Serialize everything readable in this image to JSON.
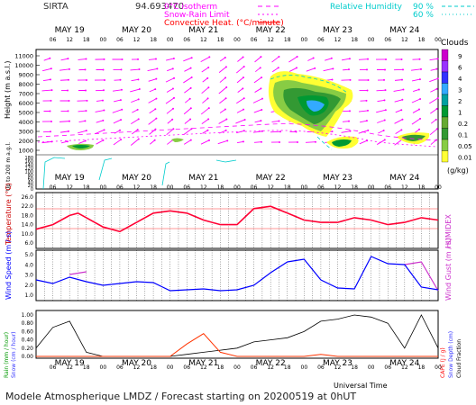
{
  "header": {
    "station": "SIRTA",
    "altitude": "94.693470",
    "legend": [
      {
        "label": "0°C isotherm",
        "color": "#ff00ff",
        "dash": "5,4"
      },
      {
        "label": "Snow-Rain Limit",
        "color": "#ff00ff",
        "dash": "2,3"
      },
      {
        "label": "Convective Heat. (°C/minute)",
        "color": "#ff0000",
        "dash": ""
      }
    ],
    "rh": {
      "label": "Relative Humidity",
      "items": [
        {
          "value": "90 %",
          "color": "#00cccc",
          "dash": "4,3"
        },
        {
          "value": "60 %",
          "color": "#00cccc",
          "dash": "1,3"
        }
      ]
    }
  },
  "colors": {
    "temperature": "#ff0033",
    "humidex": "#cc33cc",
    "wind": "#0000ff",
    "gust": "#cc33cc",
    "rain": "#ff3300",
    "snow_line": "#000000",
    "wind_vector": "#ff00ff",
    "background": "#ffffff"
  },
  "days": [
    "MAY 19",
    "MAY 20",
    "MAY 21",
    "MAY 22",
    "MAY 23",
    "MAY 24"
  ],
  "hours": [
    "06",
    "12",
    "18",
    "00"
  ],
  "panels": {
    "top": {
      "ylabel": "Height (m a.s.l.)",
      "ylabel2": "Up to 200 m a.g.l.",
      "ticks_upper": [
        "11000",
        "10000",
        "9000",
        "8000",
        "7000",
        "6000",
        "5000",
        "4000",
        "3000",
        "2000",
        "1000"
      ],
      "ticks_lower": [
        "180",
        "160",
        "140",
        "120",
        "100",
        "80",
        "60",
        "40",
        "20",
        "0"
      ],
      "clouds_title": "Clouds",
      "clouds_unit": "(g/kg)",
      "cloud_scale": [
        {
          "label": "9",
          "color": "#cc00cc"
        },
        {
          "label": "6",
          "color": "#9933ff"
        },
        {
          "label": "4",
          "color": "#3333ff"
        },
        {
          "label": "3",
          "color": "#33aaff"
        },
        {
          "label": "2",
          "color": "#00a0a0"
        },
        {
          "label": "1",
          "color": "#009933"
        },
        {
          "label": "0.2",
          "color": "#66aa33"
        },
        {
          "label": "0.1",
          "color": "#339933"
        },
        {
          "label": "0.05",
          "color": "#88cc44"
        },
        {
          "label": "0.01",
          "color": "#ffff33"
        }
      ]
    },
    "temperature": {
      "ylabel": "Temperature (°C)",
      "ylabel2": "HUMIDEX",
      "ticks": [
        "26.0",
        "22.0",
        "18.0",
        "14.0",
        "10.0",
        "6.0"
      ]
    },
    "wind": {
      "ylabel": "Wind Speed (m / s)",
      "ylabel2": "Wind Gust (m / s)",
      "ticks": [
        "5.0",
        "4.0",
        "3.0",
        "2.0",
        "1.0"
      ],
      "ticks2": [
        "5.0",
        "4.0",
        "3.0",
        "2.0",
        "1.0"
      ]
    },
    "precip": {
      "ylabel": "Rain (mm / hour)",
      "ylabel2": "Snow (cm / hour)",
      "ylabel3": "CAPE (J / g)",
      "ylabel4": "Snow Depth (cm)",
      "ylabel5": "Cloud Fraction",
      "ticks": [
        "1.00",
        "0.80",
        "0.60",
        "0.40",
        "0.20",
        "0.00"
      ],
      "xlabel": "Universal Time"
    }
  },
  "footer": "Modele Atmospherique LMDZ / Forecast starting on 20200519 at 0hUT",
  "chart_data": [
    {
      "type": "line",
      "ylabel": "Temperature (°C)",
      "ylim": [
        6,
        26
      ],
      "x_hours": [
        0,
        6,
        12,
        15,
        18,
        24,
        30,
        36,
        42,
        48,
        54,
        60,
        66,
        72,
        78,
        84,
        90,
        96,
        102,
        108,
        114,
        120,
        126,
        132,
        138,
        144
      ],
      "series": [
        {
          "name": "Temperature",
          "values": [
            12,
            14,
            18,
            19,
            17,
            13,
            11,
            15,
            19,
            20,
            19,
            16,
            14,
            14,
            21,
            22,
            19,
            16,
            15,
            15,
            17,
            16,
            14,
            15,
            17,
            16
          ]
        }
      ]
    },
    {
      "type": "line",
      "ylabel": "Wind Speed (m / s)",
      "ylim": [
        0.5,
        5.0
      ],
      "x_hours": [
        0,
        6,
        12,
        18,
        24,
        30,
        36,
        42,
        48,
        54,
        60,
        66,
        72,
        78,
        84,
        90,
        96,
        102,
        108,
        114,
        120,
        126,
        132,
        138,
        144
      ],
      "series": [
        {
          "name": "Wind Speed",
          "values": [
            2.2,
            1.8,
            2.5,
            2.0,
            1.6,
            1.8,
            2.0,
            1.9,
            1.0,
            1.1,
            1.2,
            1.0,
            1.1,
            1.6,
            3.0,
            4.2,
            4.5,
            2.2,
            1.3,
            1.2,
            4.8,
            4.0,
            3.9,
            1.4,
            1.1
          ]
        },
        {
          "name": "Wind Gust",
          "values": [
            null,
            null,
            2.8,
            3.1,
            null,
            null,
            null,
            null,
            null,
            null,
            null,
            null,
            null,
            null,
            null,
            null,
            null,
            null,
            null,
            null,
            null,
            null,
            3.9,
            4.2,
            1.0
          ]
        }
      ]
    },
    {
      "type": "line",
      "ylabel": "Rain (mm / hour)",
      "ylim": [
        0,
        1.0
      ],
      "x_hours": [
        0,
        6,
        12,
        18,
        24,
        30,
        36,
        42,
        48,
        54,
        60,
        66,
        72,
        78,
        84,
        90,
        96,
        102,
        108,
        114,
        120,
        126,
        132,
        138,
        144
      ],
      "series": [
        {
          "name": "Rain",
          "values": [
            0,
            0,
            0,
            0,
            0,
            0,
            0,
            0,
            0,
            0.3,
            0.55,
            0.1,
            0,
            0,
            0,
            0,
            0,
            0.05,
            0,
            0,
            0,
            0,
            0,
            0,
            0
          ]
        },
        {
          "name": "Cloud Fraction",
          "values": [
            0.2,
            0.7,
            0.85,
            0.1,
            0,
            0,
            0,
            0,
            0,
            0.05,
            0.1,
            0.15,
            0.2,
            0.35,
            0.4,
            0.45,
            0.6,
            0.85,
            0.9,
            1.0,
            0.95,
            0.8,
            0.2,
            1.0,
            0.2
          ]
        }
      ]
    }
  ]
}
